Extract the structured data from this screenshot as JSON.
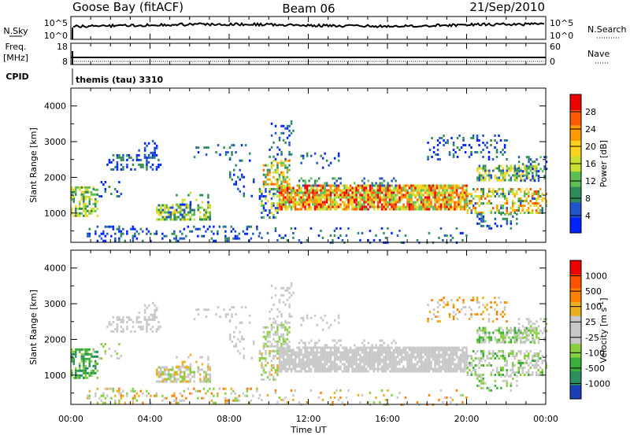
{
  "header": {
    "station": "Goose Bay (fitACF)",
    "beam": "Beam 06",
    "date": "21/Sep/2010"
  },
  "top_panels": {
    "nsky_label": "N.Sky",
    "nsearch_label": "N.Search",
    "nsky_ticks_left": [
      "10^5",
      "10^0"
    ],
    "nsky_ticks_right": [
      "10^5",
      "10^0"
    ],
    "freq_label_line1": "Freq.",
    "freq_label_line2": "[MHz]",
    "freq_ticks": [
      "18",
      "8"
    ],
    "nave_label": "Nave",
    "nave_ticks": [
      "60",
      "0"
    ],
    "cpid_label": "CPID",
    "cpid_text": "themis (tau) 3310"
  },
  "chart_data": {
    "type": "heatmap",
    "xlabel": "Time UT",
    "x_ticks": [
      "00:00",
      "04:00",
      "08:00",
      "12:00",
      "16:00",
      "20:00",
      "00:00"
    ],
    "xlim_hours": [
      0,
      24
    ],
    "panels": [
      {
        "name": "power",
        "ylabel": "Slant Range [km]",
        "ylim": [
          180,
          4500
        ],
        "y_ticks": [
          1000,
          2000,
          3000,
          4000
        ],
        "colorbar": {
          "label": "Power [dB]",
          "ticks": [
            "4",
            "8",
            "12",
            "16",
            "20",
            "24",
            "28"
          ],
          "colors": [
            "#0022ff",
            "#2255cc",
            "#2e8b57",
            "#5fbf55",
            "#c8e030",
            "#ffd21f",
            "#ff9900",
            "#ff5a00",
            "#ee0000"
          ]
        }
      },
      {
        "name": "velocity",
        "ylabel": "Slant Range [km]",
        "ylim": [
          180,
          4500
        ],
        "y_ticks": [
          1000,
          2000,
          3000,
          4000
        ],
        "colorbar": {
          "label": "Velocity [m s",
          "label_sup": "-1",
          "label_close": "]",
          "ticks": [
            "1000",
            "500",
            "100",
            "25",
            "-25",
            "-100",
            "-500",
            "-1000"
          ],
          "colors": [
            "#1a3fb8",
            "#2a8f5a",
            "#3cae3c",
            "#88d040",
            "#c8c8c8",
            "#c8c8c8",
            "#e8b020",
            "#ff8000",
            "#ff5000",
            "#ee0000"
          ]
        }
      }
    ],
    "scatter_regions": [
      {
        "t0": 0.0,
        "t1": 1.3,
        "r0": 900,
        "r1": 1750,
        "p": 0.55,
        "power": [
          2,
          5
        ],
        "vel": [
          1,
          3
        ]
      },
      {
        "t0": 1.0,
        "t1": 2.5,
        "r0": 1450,
        "r1": 1900,
        "p": 0.12,
        "power": [
          0,
          2
        ],
        "vel": [
          3,
          5
        ]
      },
      {
        "t0": 1.8,
        "t1": 4.6,
        "r0": 2250,
        "r1": 2650,
        "p": 0.35,
        "power": [
          0,
          2
        ],
        "vel": [
          4,
          5
        ]
      },
      {
        "t0": 3.3,
        "t1": 4.3,
        "r0": 2600,
        "r1": 3050,
        "p": 0.18,
        "power": [
          0,
          1
        ],
        "vel": [
          4,
          5
        ]
      },
      {
        "t0": 4.3,
        "t1": 7.0,
        "r0": 850,
        "r1": 1250,
        "p": 0.6,
        "power": [
          1,
          5
        ],
        "vel": [
          3,
          6
        ]
      },
      {
        "t0": 5.3,
        "t1": 7.0,
        "r0": 1250,
        "r1": 1600,
        "p": 0.2,
        "power": [
          0,
          4
        ],
        "vel": [
          4,
          6
        ]
      },
      {
        "t0": 0.8,
        "t1": 9.5,
        "r0": 200,
        "r1": 650,
        "p": 0.22,
        "power": [
          0,
          2
        ],
        "vel": [
          3,
          7
        ]
      },
      {
        "t0": 6.0,
        "t1": 9.0,
        "r0": 2500,
        "r1": 3000,
        "p": 0.1,
        "power": [
          0,
          2
        ],
        "vel": [
          4,
          5
        ]
      },
      {
        "t0": 8.0,
        "t1": 9.2,
        "r0": 1500,
        "r1": 2700,
        "p": 0.14,
        "power": [
          0,
          2
        ],
        "vel": [
          4,
          5
        ]
      },
      {
        "t0": 9.5,
        "t1": 10.4,
        "r0": 800,
        "r1": 1700,
        "p": 0.5,
        "power": [
          0,
          5
        ],
        "vel": [
          3,
          6
        ]
      },
      {
        "t0": 9.7,
        "t1": 11.0,
        "r0": 1700,
        "r1": 2500,
        "p": 0.55,
        "power": [
          2,
          7
        ],
        "vel": [
          3,
          5
        ]
      },
      {
        "t0": 10.0,
        "t1": 11.2,
        "r0": 2500,
        "r1": 3600,
        "p": 0.16,
        "power": [
          0,
          2
        ],
        "vel": [
          4,
          5
        ]
      },
      {
        "t0": 10.5,
        "t1": 20.0,
        "r0": 1100,
        "r1": 1800,
        "p": 0.85,
        "power": [
          3,
          8
        ],
        "vel": [
          4,
          5
        ]
      },
      {
        "t0": 11.5,
        "t1": 16.5,
        "r0": 1750,
        "r1": 2000,
        "p": 0.22,
        "power": [
          1,
          3
        ],
        "vel": [
          4,
          5
        ]
      },
      {
        "t0": 9.5,
        "t1": 20.0,
        "r0": 200,
        "r1": 600,
        "p": 0.08,
        "power": [
          0,
          2
        ],
        "vel": [
          3,
          7
        ]
      },
      {
        "t0": 11.5,
        "t1": 13.5,
        "r0": 2300,
        "r1": 2700,
        "p": 0.12,
        "power": [
          0,
          2
        ],
        "vel": [
          4,
          5
        ]
      },
      {
        "t0": 20.0,
        "t1": 24.0,
        "r0": 1000,
        "r1": 1700,
        "p": 0.45,
        "power": [
          1,
          7
        ],
        "vel": [
          2,
          5
        ]
      },
      {
        "t0": 20.5,
        "t1": 23.5,
        "r0": 1950,
        "r1": 2350,
        "p": 0.6,
        "power": [
          1,
          5
        ],
        "vel": [
          2,
          4
        ]
      },
      {
        "t0": 18.0,
        "t1": 22.0,
        "r0": 2500,
        "r1": 3200,
        "p": 0.18,
        "power": [
          0,
          2
        ],
        "vel": [
          5,
          7
        ]
      },
      {
        "t0": 20.5,
        "t1": 22.5,
        "r0": 600,
        "r1": 1000,
        "p": 0.25,
        "power": [
          0,
          3
        ],
        "vel": [
          2,
          5
        ]
      },
      {
        "t0": 22.5,
        "t1": 24.0,
        "r0": 1900,
        "r1": 2600,
        "p": 0.3,
        "power": [
          0,
          3
        ],
        "vel": [
          3,
          5
        ]
      }
    ]
  }
}
